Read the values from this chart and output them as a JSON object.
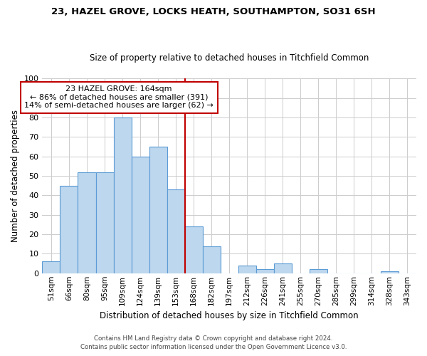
{
  "title1": "23, HAZEL GROVE, LOCKS HEATH, SOUTHAMPTON, SO31 6SH",
  "title2": "Size of property relative to detached houses in Titchfield Common",
  "xlabel": "Distribution of detached houses by size in Titchfield Common",
  "ylabel": "Number of detached properties",
  "bar_labels": [
    "51sqm",
    "66sqm",
    "80sqm",
    "95sqm",
    "109sqm",
    "124sqm",
    "139sqm",
    "153sqm",
    "168sqm",
    "182sqm",
    "197sqm",
    "212sqm",
    "226sqm",
    "241sqm",
    "255sqm",
    "270sqm",
    "285sqm",
    "299sqm",
    "314sqm",
    "328sqm",
    "343sqm"
  ],
  "bar_values": [
    6,
    45,
    52,
    52,
    80,
    60,
    65,
    43,
    24,
    14,
    0,
    4,
    2,
    5,
    0,
    2,
    0,
    0,
    0,
    1,
    0
  ],
  "bar_color": "#bdd7ee",
  "bar_edge_color": "#5b9bd5",
  "annotation_title": "23 HAZEL GROVE: 164sqm",
  "annotation_line1": "← 86% of detached houses are smaller (391)",
  "annotation_line2": "14% of semi-detached houses are larger (62) →",
  "box_edge_color": "#c00000",
  "red_line_index": 8,
  "ylim": [
    0,
    100
  ],
  "yticks": [
    0,
    10,
    20,
    30,
    40,
    50,
    60,
    70,
    80,
    90,
    100
  ],
  "footer1": "Contains HM Land Registry data © Crown copyright and database right 2024.",
  "footer2": "Contains public sector information licensed under the Open Government Licence v3.0.",
  "bg_color": "#ffffff",
  "grid_color": "#cccccc"
}
